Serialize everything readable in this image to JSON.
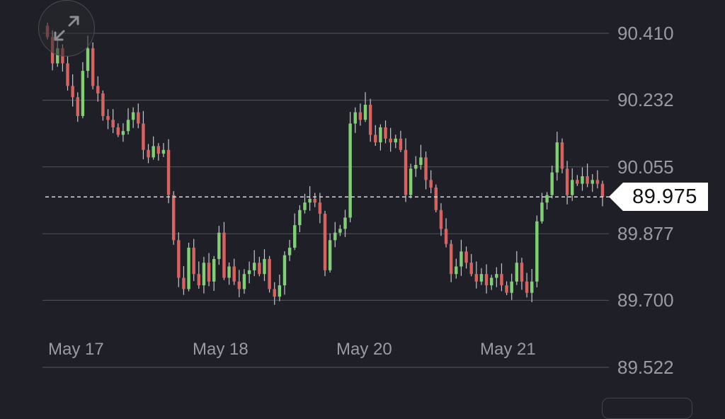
{
  "chart_data": {
    "type": "candlestick",
    "price_labels": [
      "90.410",
      "90.232",
      "90.055",
      "89.877",
      "89.700",
      "89.522"
    ],
    "date_labels": [
      "May 17",
      "May 18",
      "May 20",
      "May 21"
    ],
    "current_price": "89.975",
    "current_value": 89.975,
    "ylim": [
      89.522,
      90.41
    ],
    "grid": true,
    "colors": {
      "up": "#7fcf73",
      "down": "#d9625f",
      "wick": "#c4c5ca",
      "grid": "#4b4c53",
      "label": "#9a9ba1",
      "tag_bg": "#ffffff"
    },
    "closes": [
      90.4,
      90.33,
      90.37,
      90.33,
      90.27,
      90.24,
      90.19,
      90.31,
      90.37,
      90.27,
      90.25,
      90.19,
      90.18,
      90.16,
      90.14,
      90.15,
      90.18,
      90.2,
      90.17,
      90.1,
      90.08,
      90.11,
      90.09,
      90.1,
      89.98,
      89.86,
      89.76,
      89.73,
      89.84,
      89.77,
      89.74,
      89.8,
      89.75,
      89.81,
      89.88,
      89.76,
      89.79,
      89.75,
      89.73,
      89.77,
      89.78,
      89.8,
      89.77,
      89.81,
      89.73,
      89.71,
      89.74,
      89.82,
      89.84,
      89.9,
      89.94,
      89.96,
      89.97,
      89.96,
      89.93,
      89.78,
      89.86,
      89.88,
      89.89,
      89.92,
      90.17,
      90.2,
      90.18,
      90.22,
      90.14,
      90.12,
      90.16,
      90.13,
      90.12,
      90.13,
      90.1,
      89.98,
      90.05,
      90.06,
      90.08,
      90.02,
      90.0,
      89.94,
      89.89,
      89.85,
      89.77,
      89.79,
      89.83,
      89.8,
      89.77,
      89.75,
      89.77,
      89.74,
      89.76,
      89.77,
      89.74,
      89.72,
      89.75,
      89.8,
      89.75,
      89.72,
      89.75,
      89.91,
      89.96,
      89.98,
      90.04,
      90.12,
      90.05,
      89.98,
      90.02,
      90.01,
      90.03,
      90.01,
      90.02,
      90.01,
      89.975
    ]
  }
}
